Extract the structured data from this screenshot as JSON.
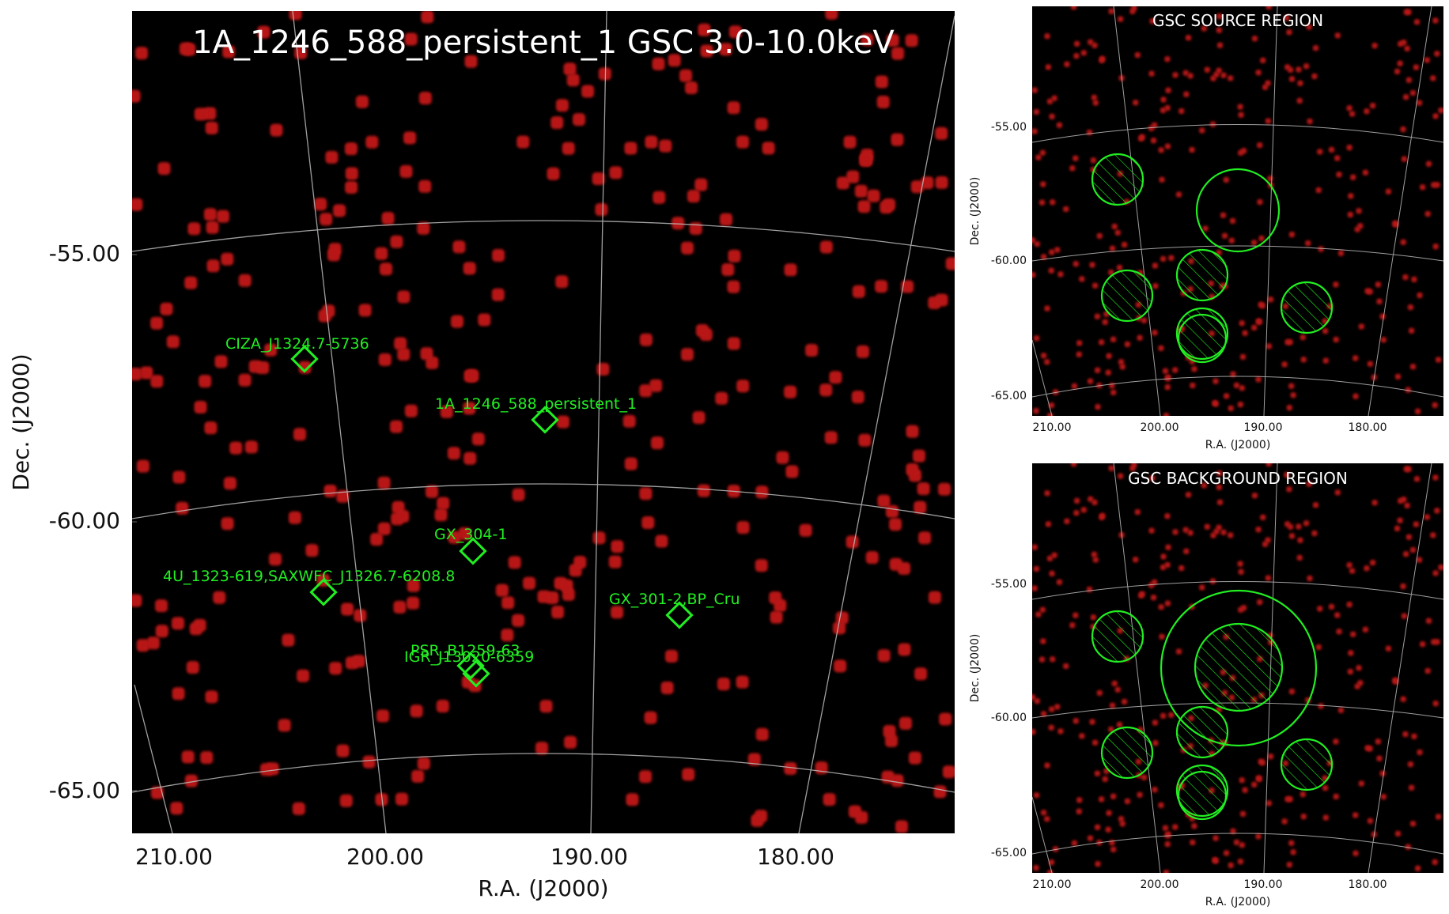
{
  "main_panel": {
    "title": "1A_1246_588_persistent_1 GSC 3.0-10.0keV",
    "xlabel": "R.A. (J2000)",
    "ylabel": "Dec. (J2000)",
    "x_ticks": [
      "210.00",
      "200.00",
      "190.00",
      "180.00"
    ],
    "y_ticks": [
      "-55.00",
      "-60.00",
      "-65.00"
    ],
    "sources": [
      {
        "label": "CIZA_J1324.7-5736"
      },
      {
        "label": "1A_1246_588_persistent_1"
      },
      {
        "label": "GX_304-1"
      },
      {
        "label": "4U_1323-619,SAXWFC_J1326.7-6208.8"
      },
      {
        "label": "GX_301-2,BP_Cru"
      },
      {
        "label": "PSR_B1259-63"
      },
      {
        "label": "IGR_J13020-6359"
      }
    ]
  },
  "source_panel": {
    "title": "GSC SOURCE REGION",
    "xlabel": "R.A. (J2000)",
    "ylabel": "Dec. (J2000)",
    "x_ticks": [
      "210.00",
      "200.00",
      "190.00",
      "180.00"
    ],
    "y_ticks": [
      "-55.00",
      "-60.00",
      "-65.00"
    ]
  },
  "background_panel": {
    "title": "GSC BACKGROUND REGION",
    "xlabel": "R.A. (J2000)",
    "ylabel": "Dec. (J2000)",
    "x_ticks": [
      "210.00",
      "200.00",
      "190.00",
      "180.00"
    ],
    "y_ticks": [
      "-55.00",
      "-60.00",
      "-65.00"
    ]
  },
  "colors": {
    "background": "#000000",
    "source_dots": "#b81818",
    "regions": "#22ee22",
    "grid": "#bbbbbb"
  }
}
